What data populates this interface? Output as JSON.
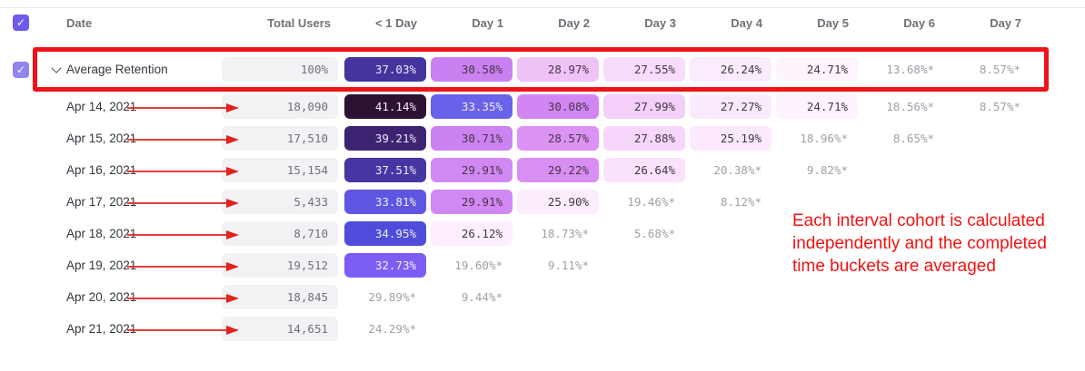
{
  "table": {
    "date_header": "Date",
    "total_header": "Total Users",
    "day_headers": [
      "< 1 Day",
      "Day 1",
      "Day 2",
      "Day 3",
      "Day 4",
      "Day 5",
      "Day 6",
      "Day 7"
    ],
    "rows": [
      {
        "date": "Average Retention",
        "total": "100%",
        "is_average": true,
        "cells": [
          {
            "v": "37.03%",
            "bg": "#46349e",
            "fg": "#efe9fa"
          },
          {
            "v": "30.58%",
            "bg": "#cb80f1"
          },
          {
            "v": "28.97%",
            "bg": "#f0c3f8"
          },
          {
            "v": "27.55%",
            "bg": "#f7dcfb"
          },
          {
            "v": "26.24%",
            "bg": "#fbecfd"
          },
          {
            "v": "24.71%",
            "bg": "#fdf4fe"
          },
          {
            "v": "13.68%*",
            "star": true
          },
          {
            "v": "8.57%*",
            "star": true
          }
        ]
      },
      {
        "date": "Apr 14, 2021",
        "total": "18,090",
        "cells": [
          {
            "v": "41.14%",
            "bg": "#2e1234",
            "fg": "#f2ecf6"
          },
          {
            "v": "33.35%",
            "bg": "#6b62ec",
            "fg": "#f0eefc"
          },
          {
            "v": "30.08%",
            "bg": "#d286f3"
          },
          {
            "v": "27.99%",
            "bg": "#f4cffa"
          },
          {
            "v": "27.27%",
            "bg": "#faeafd"
          },
          {
            "v": "24.71%",
            "bg": "#fdf3fe"
          },
          {
            "v": "18.56%*",
            "star": true
          },
          {
            "v": "8.57%*",
            "star": true
          }
        ]
      },
      {
        "date": "Apr 15, 2021",
        "total": "17,510",
        "cells": [
          {
            "v": "39.21%",
            "bg": "#3d2472",
            "fg": "#eee8f8"
          },
          {
            "v": "30.71%",
            "bg": "#cd82f1"
          },
          {
            "v": "28.57%",
            "bg": "#dc93f4"
          },
          {
            "v": "27.88%",
            "bg": "#f6d6fb"
          },
          {
            "v": "25.19%",
            "bg": "#fce9fd"
          },
          {
            "v": "18.96%*",
            "star": true
          },
          {
            "v": "8.65%*",
            "star": true
          },
          null
        ]
      },
      {
        "date": "Apr 16, 2021",
        "total": "15,154",
        "cells": [
          {
            "v": "37.51%",
            "bg": "#4636a4",
            "fg": "#efe9fa"
          },
          {
            "v": "29.91%",
            "bg": "#d288f3"
          },
          {
            "v": "29.22%",
            "bg": "#d98ef4"
          },
          {
            "v": "26.64%",
            "bg": "#fbe2fd"
          },
          {
            "v": "20.38%*",
            "star": true
          },
          {
            "v": "9.82%*",
            "star": true
          },
          null,
          null
        ]
      },
      {
        "date": "Apr 17, 2021",
        "total": "5,433",
        "cells": [
          {
            "v": "33.81%",
            "bg": "#5e55e3",
            "fg": "#f0eefc"
          },
          {
            "v": "29.91%",
            "bg": "#d288f3"
          },
          {
            "v": "25.90%",
            "bg": "#fcedfd"
          },
          {
            "v": "19.46%*",
            "star": true
          },
          {
            "v": "8.12%*",
            "star": true
          },
          null,
          null,
          null
        ]
      },
      {
        "date": "Apr 18, 2021",
        "total": "8,710",
        "cells": [
          {
            "v": "34.95%",
            "bg": "#4f4cdb",
            "fg": "#f0eefc"
          },
          {
            "v": "26.12%",
            "bg": "#fdeffe"
          },
          {
            "v": "18.73%*",
            "star": true
          },
          {
            "v": "5.68%*",
            "star": true
          },
          null,
          null,
          null,
          null
        ]
      },
      {
        "date": "Apr 19, 2021",
        "total": "19,512",
        "cells": [
          {
            "v": "32.73%",
            "bg": "#7d5ef5",
            "fg": "#f2f0fd"
          },
          {
            "v": "19.60%*",
            "star": true
          },
          {
            "v": "9.11%*",
            "star": true
          },
          null,
          null,
          null,
          null,
          null
        ]
      },
      {
        "date": "Apr 20, 2021",
        "total": "18,845",
        "cells": [
          {
            "v": "29.89%*",
            "star": true
          },
          {
            "v": "9.44%*",
            "star": true
          },
          null,
          null,
          null,
          null,
          null,
          null
        ]
      },
      {
        "date": "Apr 21, 2021",
        "total": "14,651",
        "cells": [
          {
            "v": "24.29%*",
            "star": true
          },
          null,
          null,
          null,
          null,
          null,
          null,
          null
        ]
      }
    ]
  },
  "annotation": {
    "text": "Each interval cohort is calculated independently and the completed time buckets are averaged",
    "color": "#f21313"
  },
  "colors": {
    "accent_purple": "#6d5bee",
    "row_checkbox_purple": "#9185ef",
    "highlight_red": "#ee1318",
    "arrow_red": "#e0231d",
    "cell_default_text": "#423747",
    "muted_value_text": "#9fa0a8",
    "gray_pill_bg": "#f2f2f4",
    "gray_pill_text": "#70707a",
    "header_text": "#70707a",
    "check_icon": "✓"
  }
}
